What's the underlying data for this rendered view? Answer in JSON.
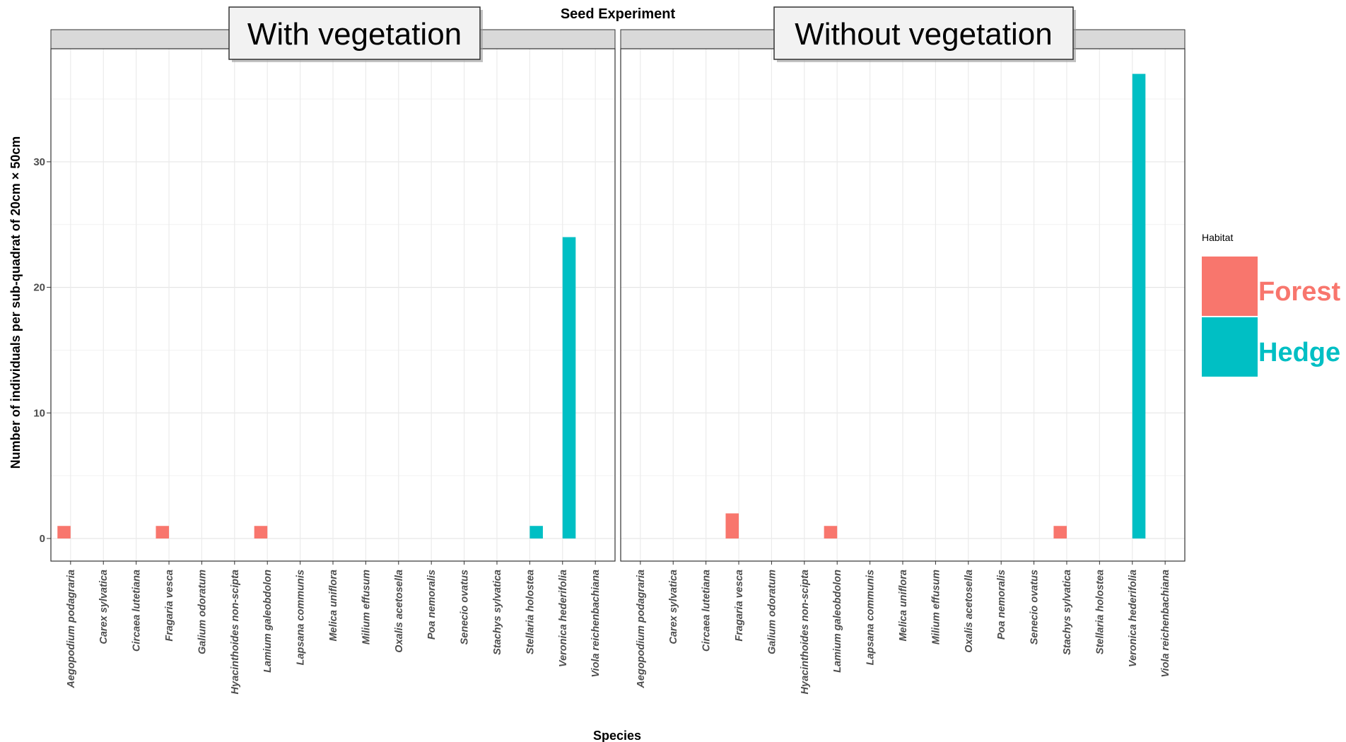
{
  "chart_data": {
    "type": "bar",
    "title": "Seed Experiment",
    "xlabel": "Species",
    "ylabel": "Number of individuals per sub-quadrat of 20cm × 50cm",
    "ylim": [
      -1.8,
      39
    ],
    "yticks": [
      0,
      10,
      20,
      30
    ],
    "grid": true,
    "legend": {
      "title": "Habitat",
      "position": "right",
      "entries": [
        {
          "name": "Forest",
          "color": "#F8766D"
        },
        {
          "name": "Hedge",
          "color": "#00BFC4"
        }
      ]
    },
    "categories": [
      "Aegopodium podagraria",
      "Carex sylvatica",
      "Circaea lutetiana",
      "Fragaria vesca",
      "Galium odoratum",
      "Hyacinthoides non-scipta",
      "Lamium galeobdolon",
      "Lapsana communis",
      "Melica uniflora",
      "Milium effusum",
      "Oxalis acetosella",
      "Poa nemoralis",
      "Senecio ovatus",
      "Stachys sylvatica",
      "Stellaria holostea",
      "Veronica hederifolia",
      "Viola reichenbachiana"
    ],
    "facets": [
      {
        "label": "With vegetation",
        "series": [
          {
            "name": "Forest",
            "values": [
              1,
              0,
              0,
              1,
              0,
              0,
              1,
              0,
              0,
              0,
              0,
              0,
              0,
              0,
              0,
              0,
              0
            ]
          },
          {
            "name": "Hedge",
            "values": [
              0,
              0,
              0,
              0,
              0,
              0,
              0,
              0,
              0,
              0,
              0,
              0,
              0,
              0,
              1,
              24,
              0
            ]
          }
        ]
      },
      {
        "label": "Without vegetation",
        "series": [
          {
            "name": "Forest",
            "values": [
              0,
              0,
              0,
              2,
              0,
              0,
              1,
              0,
              0,
              0,
              0,
              0,
              0,
              1,
              0,
              0,
              0
            ]
          },
          {
            "name": "Hedge",
            "values": [
              0,
              0,
              0,
              0,
              0,
              0,
              0,
              0,
              0,
              0,
              0,
              0,
              0,
              0,
              0,
              37,
              0
            ]
          }
        ]
      }
    ]
  }
}
